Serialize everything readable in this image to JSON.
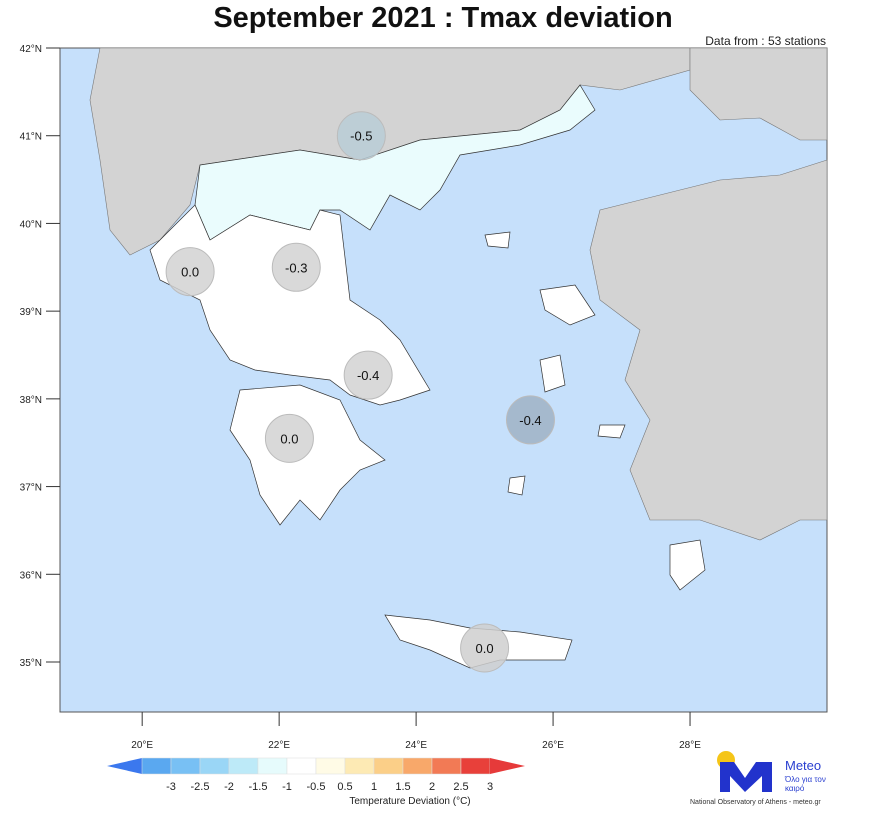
{
  "title": "September 2021 : Tmax deviation",
  "subtitle": "Data from : 53 stations",
  "map": {
    "lon_range": [
      18.8,
      30.0
    ],
    "lat_range": [
      34.43,
      42.0
    ],
    "lon_ticks": [
      "20°E",
      "22°E",
      "24°E",
      "26°E",
      "28°E"
    ],
    "lat_ticks": [
      "42°N",
      "41°N",
      "40°N",
      "39°N",
      "38°N",
      "37°N",
      "36°N",
      "35°N"
    ],
    "colors": {
      "sea": "#c6e0fb",
      "land_other": "#d3d3d3",
      "greece_neutral": "#ffffff",
      "greece_neg": "#eafcfd"
    },
    "regions": [
      {
        "value": "-0.5",
        "lon": 23.2,
        "lat": 41.0,
        "color": "#b9ccd6"
      },
      {
        "value": "0.0",
        "lon": 20.7,
        "lat": 39.45,
        "color": "#d2d2d2"
      },
      {
        "value": "-0.3",
        "lon": 22.25,
        "lat": 39.5,
        "color": "#d2d2d2"
      },
      {
        "value": "-0.4",
        "lon": 23.3,
        "lat": 38.27,
        "color": "#d2d2d2"
      },
      {
        "value": "0.0",
        "lon": 22.15,
        "lat": 37.55,
        "color": "#d2d2d2"
      },
      {
        "value": "-0.4",
        "lon": 25.67,
        "lat": 37.76,
        "color": "#9fb1c4"
      },
      {
        "value": "0.0",
        "lon": 25.0,
        "lat": 35.16,
        "color": "#cfcfcf"
      }
    ]
  },
  "colorbar": {
    "label": "Temperature Deviation (°C)",
    "ticks": [
      "-3",
      "-2.5",
      "-2",
      "-1.5",
      "-1",
      "-0.5",
      "0.5",
      "1",
      "1.5",
      "2",
      "2.5",
      "3"
    ],
    "colors": [
      "#3b78ee",
      "#5aa8f0",
      "#78c0f4",
      "#9ad6f6",
      "#bdeaf8",
      "#e6fbfc",
      "#ffffff",
      "#fffbe6",
      "#fdeab4",
      "#fbcf88",
      "#f8a86a",
      "#f27a55",
      "#e8403a",
      "#e63a3a"
    ]
  },
  "logo": {
    "name": "Meteo",
    "tagline": "Όλο για τον καιρό",
    "org": "National Observatory of Athens - meteo.gr",
    "blue": "#2233cc",
    "yellow": "#f5c518"
  }
}
